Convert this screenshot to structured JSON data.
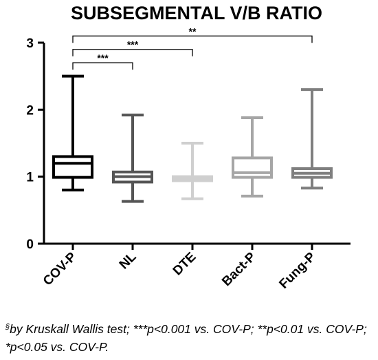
{
  "chart_data": {
    "type": "box",
    "title": "SUBSEGMENTAL V/B RATIO",
    "xlabel": "",
    "ylabel": "",
    "ylim": [
      0,
      3
    ],
    "yticks": [
      0,
      1,
      2,
      3
    ],
    "grid": false,
    "categories": [
      "COV-P",
      "NL",
      "DTE",
      "Bact-P",
      "Fung-P"
    ],
    "boxes": [
      {
        "category": "COV-P",
        "min": 0.8,
        "q1": 0.99,
        "median": 1.2,
        "q3": 1.3,
        "max": 2.5,
        "color": "#000000"
      },
      {
        "category": "NL",
        "min": 0.63,
        "q1": 0.92,
        "median": 1.0,
        "q3": 1.07,
        "max": 1.92,
        "color": "#555555"
      },
      {
        "category": "DTE",
        "min": 0.67,
        "q1": 0.94,
        "median": 0.98,
        "q3": 1.0,
        "max": 1.5,
        "color": "#cfcfcf"
      },
      {
        "category": "Bact-P",
        "min": 0.71,
        "q1": 0.99,
        "median": 1.06,
        "q3": 1.28,
        "max": 1.88,
        "color": "#a6a6a6"
      },
      {
        "category": "Fung-P",
        "min": 0.83,
        "q1": 0.99,
        "median": 1.05,
        "q3": 1.12,
        "max": 2.3,
        "color": "#7f7f7f"
      }
    ],
    "significance": [
      {
        "from": "COV-P",
        "to": "NL",
        "y": 2.7,
        "label": "***"
      },
      {
        "from": "COV-P",
        "to": "DTE",
        "y": 2.9,
        "label": "***"
      },
      {
        "from": "COV-P",
        "to": "Fung-P",
        "y": 3.1,
        "label": "**"
      }
    ]
  },
  "footnote": {
    "sup": "§",
    "text": "by Kruskall Wallis test; ***p<0.001 vs. COV-P; **p<0.01 vs. COV-P; *p<0.05 vs. COV-P."
  }
}
